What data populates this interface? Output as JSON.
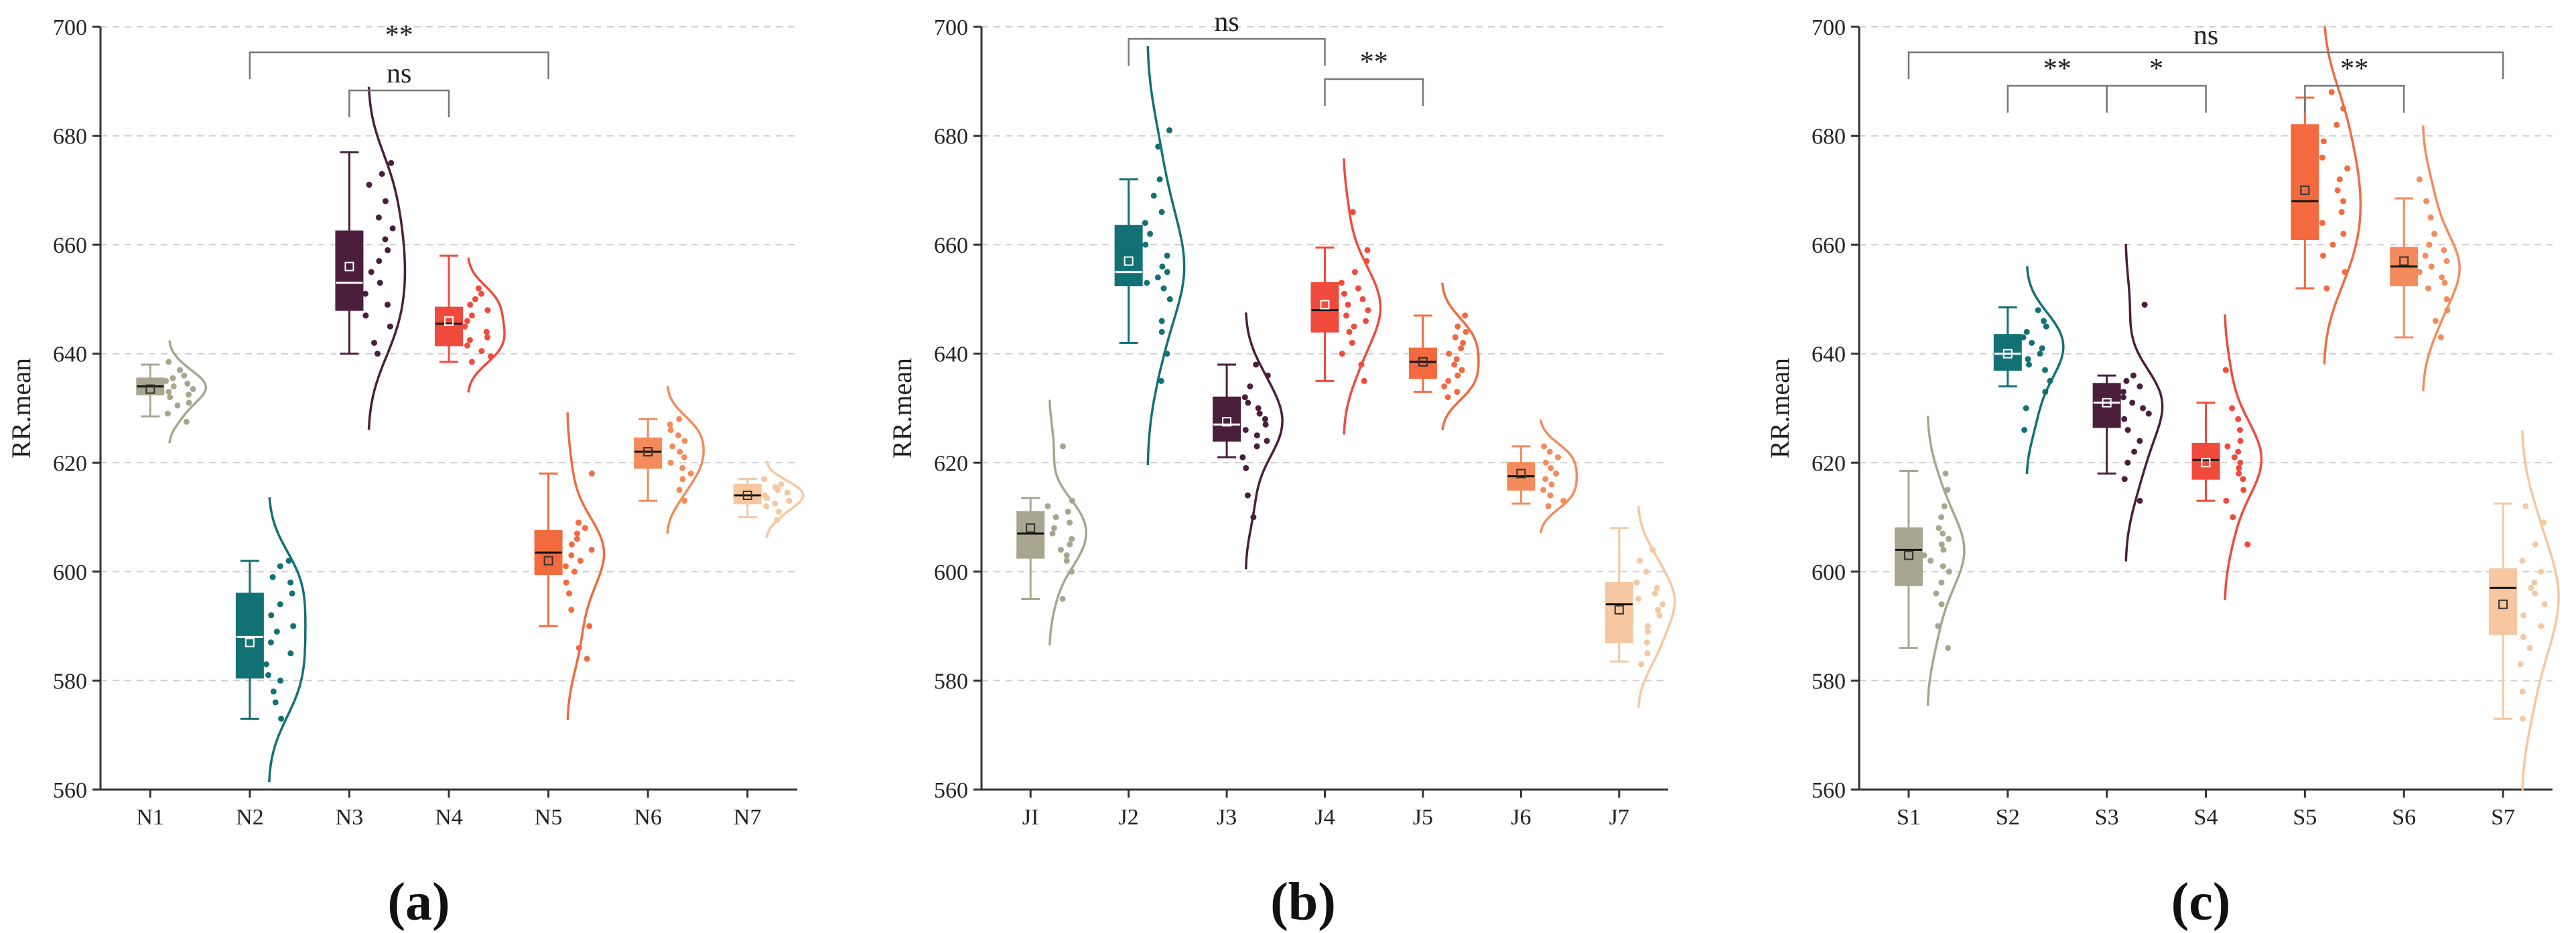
{
  "chart_data": [
    {
      "type": "raincloud",
      "panel_label": "(a)",
      "ylabel": "RR.mean",
      "ylim": [
        560,
        700
      ],
      "yticks": [
        560,
        580,
        600,
        620,
        640,
        660,
        680,
        700
      ],
      "grid": "horizontal-dashed",
      "groups": [
        {
          "label": "N1",
          "color": "#a9a68f",
          "min": 628.5,
          "q1": 632.5,
          "median": 634,
          "q3": 635.5,
          "max": 638,
          "mean": 633.5,
          "points": [
            627.5,
            629,
            630.5,
            631,
            632,
            632.5,
            633,
            633.5,
            634,
            634.5,
            635,
            635.5,
            636,
            637,
            638.5
          ]
        },
        {
          "label": "N2",
          "color": "#127174",
          "min": 573,
          "q1": 580.5,
          "median": 588,
          "q3": 596,
          "max": 602,
          "mean": 587,
          "points": [
            573,
            576,
            578,
            580,
            581,
            583,
            585,
            587,
            589,
            590,
            592,
            594,
            596,
            598,
            599,
            601,
            602
          ]
        },
        {
          "label": "N3",
          "color": "#4b1e3c",
          "min": 640,
          "q1": 648,
          "median": 653,
          "q3": 662.5,
          "max": 677,
          "mean": 656,
          "points": [
            640,
            642,
            645,
            647,
            649,
            651,
            653,
            655,
            657,
            659,
            661,
            663,
            665,
            668,
            671,
            673,
            675
          ]
        },
        {
          "label": "N4",
          "color": "#f04a3c",
          "min": 638.5,
          "q1": 641.5,
          "median": 645.5,
          "q3": 648.5,
          "max": 658,
          "mean": 646,
          "points": [
            638.5,
            639.5,
            640.5,
            641.5,
            642.5,
            643,
            644,
            645,
            646,
            647,
            648,
            649,
            650,
            651,
            652
          ]
        },
        {
          "label": "N5",
          "color": "#f26a3e",
          "min": 590,
          "q1": 599.5,
          "median": 603.5,
          "q3": 607.5,
          "max": 618,
          "mean": 602,
          "points": [
            584,
            586,
            590,
            593,
            596,
            598,
            600,
            601,
            602,
            603,
            604,
            605,
            606,
            607,
            608,
            609,
            618
          ]
        },
        {
          "label": "N6",
          "color": "#f38b5c",
          "min": 613,
          "q1": 619,
          "median": 622,
          "q3": 624.5,
          "max": 628,
          "mean": 622,
          "points": [
            613,
            615,
            617,
            618,
            619,
            620,
            621,
            622,
            623,
            624,
            625,
            626,
            627,
            628
          ]
        },
        {
          "label": "N7",
          "color": "#f6c7a1",
          "min": 610,
          "q1": 612.5,
          "median": 614,
          "q3": 616,
          "max": 617,
          "mean": 614,
          "points": [
            609.5,
            611,
            612,
            612.5,
            613,
            613.5,
            614,
            614.5,
            615,
            615.5,
            616,
            617
          ]
        }
      ],
      "significance": [
        {
          "from": "N2",
          "to": "N5",
          "label": "**",
          "level": 1
        },
        {
          "from": "N3",
          "to": "N4",
          "label": "ns",
          "level": 0
        }
      ]
    },
    {
      "type": "raincloud",
      "panel_label": "(b)",
      "ylabel": "RR.mean",
      "ylim": [
        560,
        700
      ],
      "yticks": [
        560,
        580,
        600,
        620,
        640,
        660,
        680,
        700
      ],
      "grid": "horizontal-dashed",
      "groups": [
        {
          "label": "JI",
          "color": "#a9a68f",
          "min": 595,
          "q1": 602.5,
          "median": 607,
          "q3": 611,
          "max": 613.5,
          "mean": 608,
          "points": [
            595,
            600,
            602,
            603,
            604,
            605,
            606,
            607,
            608,
            609,
            610,
            611,
            612,
            613,
            623
          ]
        },
        {
          "label": "J2",
          "color": "#127174",
          "min": 642,
          "q1": 652.5,
          "median": 655,
          "q3": 663.5,
          "max": 672,
          "mean": 657,
          "points": [
            635,
            640,
            644,
            646,
            650,
            652,
            653,
            654,
            655,
            656,
            658,
            660,
            662,
            664,
            666,
            669,
            672,
            678,
            681
          ]
        },
        {
          "label": "J3",
          "color": "#4b1e3c",
          "min": 621,
          "q1": 624,
          "median": 627,
          "q3": 632,
          "max": 638,
          "mean": 627.5,
          "points": [
            610,
            614,
            619,
            621,
            623,
            624,
            625,
            626,
            627,
            628,
            629,
            630,
            631,
            632,
            634,
            636,
            638
          ]
        },
        {
          "label": "J4",
          "color": "#f04a3c",
          "min": 635,
          "q1": 644,
          "median": 648,
          "q3": 653,
          "max": 659.5,
          "mean": 649,
          "points": [
            635,
            638,
            640,
            642,
            644,
            645,
            646,
            647,
            648,
            649,
            650,
            651,
            652,
            653,
            655,
            657,
            659,
            666
          ]
        },
        {
          "label": "J5",
          "color": "#f26a3e",
          "min": 633,
          "q1": 635.5,
          "median": 638.5,
          "q3": 641,
          "max": 647,
          "mean": 638.5,
          "points": [
            632,
            633,
            634,
            635,
            636,
            637,
            638,
            639,
            640,
            641,
            642,
            643,
            644,
            645,
            647
          ]
        },
        {
          "label": "J6",
          "color": "#f38b5c",
          "min": 612.5,
          "q1": 615,
          "median": 617.5,
          "q3": 620,
          "max": 623,
          "mean": 618,
          "points": [
            612,
            613,
            614,
            615,
            616,
            617,
            618,
            619,
            620,
            621,
            622,
            623
          ]
        },
        {
          "label": "J7",
          "color": "#f6c7a1",
          "min": 583.5,
          "q1": 587,
          "median": 594,
          "q3": 598,
          "max": 608,
          "mean": 593,
          "points": [
            583,
            585,
            587,
            589,
            590,
            592,
            593,
            594,
            595,
            596,
            597,
            598,
            600,
            602,
            604
          ]
        }
      ],
      "significance": [
        {
          "from": "J2",
          "to": "J4",
          "label": "ns",
          "level": 1
        },
        {
          "from": "J4",
          "to": "J5",
          "label": "**",
          "level": 0
        }
      ]
    },
    {
      "type": "raincloud",
      "panel_label": "(c)",
      "ylabel": "RR.mean",
      "ylim": [
        560,
        700
      ],
      "yticks": [
        560,
        580,
        600,
        620,
        640,
        660,
        680,
        700
      ],
      "grid": "horizontal-dashed",
      "groups": [
        {
          "label": "S1",
          "color": "#a9a68f",
          "min": 586,
          "q1": 597.5,
          "median": 604,
          "q3": 608,
          "max": 618.5,
          "mean": 603,
          "points": [
            586,
            590,
            594,
            596,
            598,
            600,
            601,
            602,
            603,
            604,
            605,
            606,
            607,
            608,
            610,
            612,
            615,
            618
          ]
        },
        {
          "label": "S2",
          "color": "#127174",
          "min": 634,
          "q1": 637,
          "median": 640,
          "q3": 643.5,
          "max": 648.5,
          "mean": 640,
          "points": [
            626,
            630,
            633,
            635,
            637,
            638,
            639,
            640,
            641,
            642,
            643,
            644,
            645,
            646,
            648
          ]
        },
        {
          "label": "S3",
          "color": "#4b1e3c",
          "min": 618,
          "q1": 626.5,
          "median": 631,
          "q3": 634.5,
          "max": 636,
          "mean": 631,
          "points": [
            613,
            617,
            620,
            622,
            624,
            626,
            628,
            629,
            630,
            631,
            632,
            633,
            634,
            635,
            636,
            649
          ]
        },
        {
          "label": "S4",
          "color": "#f04a3c",
          "min": 613,
          "q1": 617,
          "median": 620.5,
          "q3": 623.5,
          "max": 631,
          "mean": 620,
          "points": [
            605,
            610,
            613,
            615,
            617,
            618,
            619,
            620,
            621,
            622,
            623,
            624,
            626,
            628,
            630,
            637
          ]
        },
        {
          "label": "S5",
          "color": "#f26a3e",
          "min": 652,
          "q1": 661,
          "median": 668,
          "q3": 682,
          "max": 687,
          "mean": 670,
          "points": [
            652,
            655,
            658,
            660,
            662,
            664,
            666,
            668,
            670,
            672,
            674,
            676,
            679,
            682,
            685,
            688
          ]
        },
        {
          "label": "S6",
          "color": "#f38b5c",
          "min": 643,
          "q1": 652.5,
          "median": 656,
          "q3": 659.5,
          "max": 668.5,
          "mean": 657,
          "points": [
            643,
            646,
            648,
            650,
            652,
            653,
            654,
            655,
            656,
            657,
            658,
            659,
            660,
            662,
            665,
            668,
            672
          ]
        },
        {
          "label": "S7",
          "color": "#f6c7a1",
          "min": 573,
          "q1": 588.5,
          "median": 597,
          "q3": 600.5,
          "max": 612.5,
          "mean": 594,
          "points": [
            573,
            578,
            583,
            586,
            588,
            590,
            592,
            594,
            596,
            597,
            598,
            600,
            602,
            605,
            609,
            612
          ]
        }
      ],
      "significance": [
        {
          "from": "S1",
          "to": "S7",
          "label": "ns",
          "level": 2
        },
        {
          "from": "S2",
          "to": "S3",
          "label": "**",
          "level": 0
        },
        {
          "from": "S3",
          "to": "S4",
          "label": "*",
          "level": 0
        },
        {
          "from": "S5",
          "to": "S6",
          "label": "**",
          "level": 0
        }
      ]
    }
  ]
}
